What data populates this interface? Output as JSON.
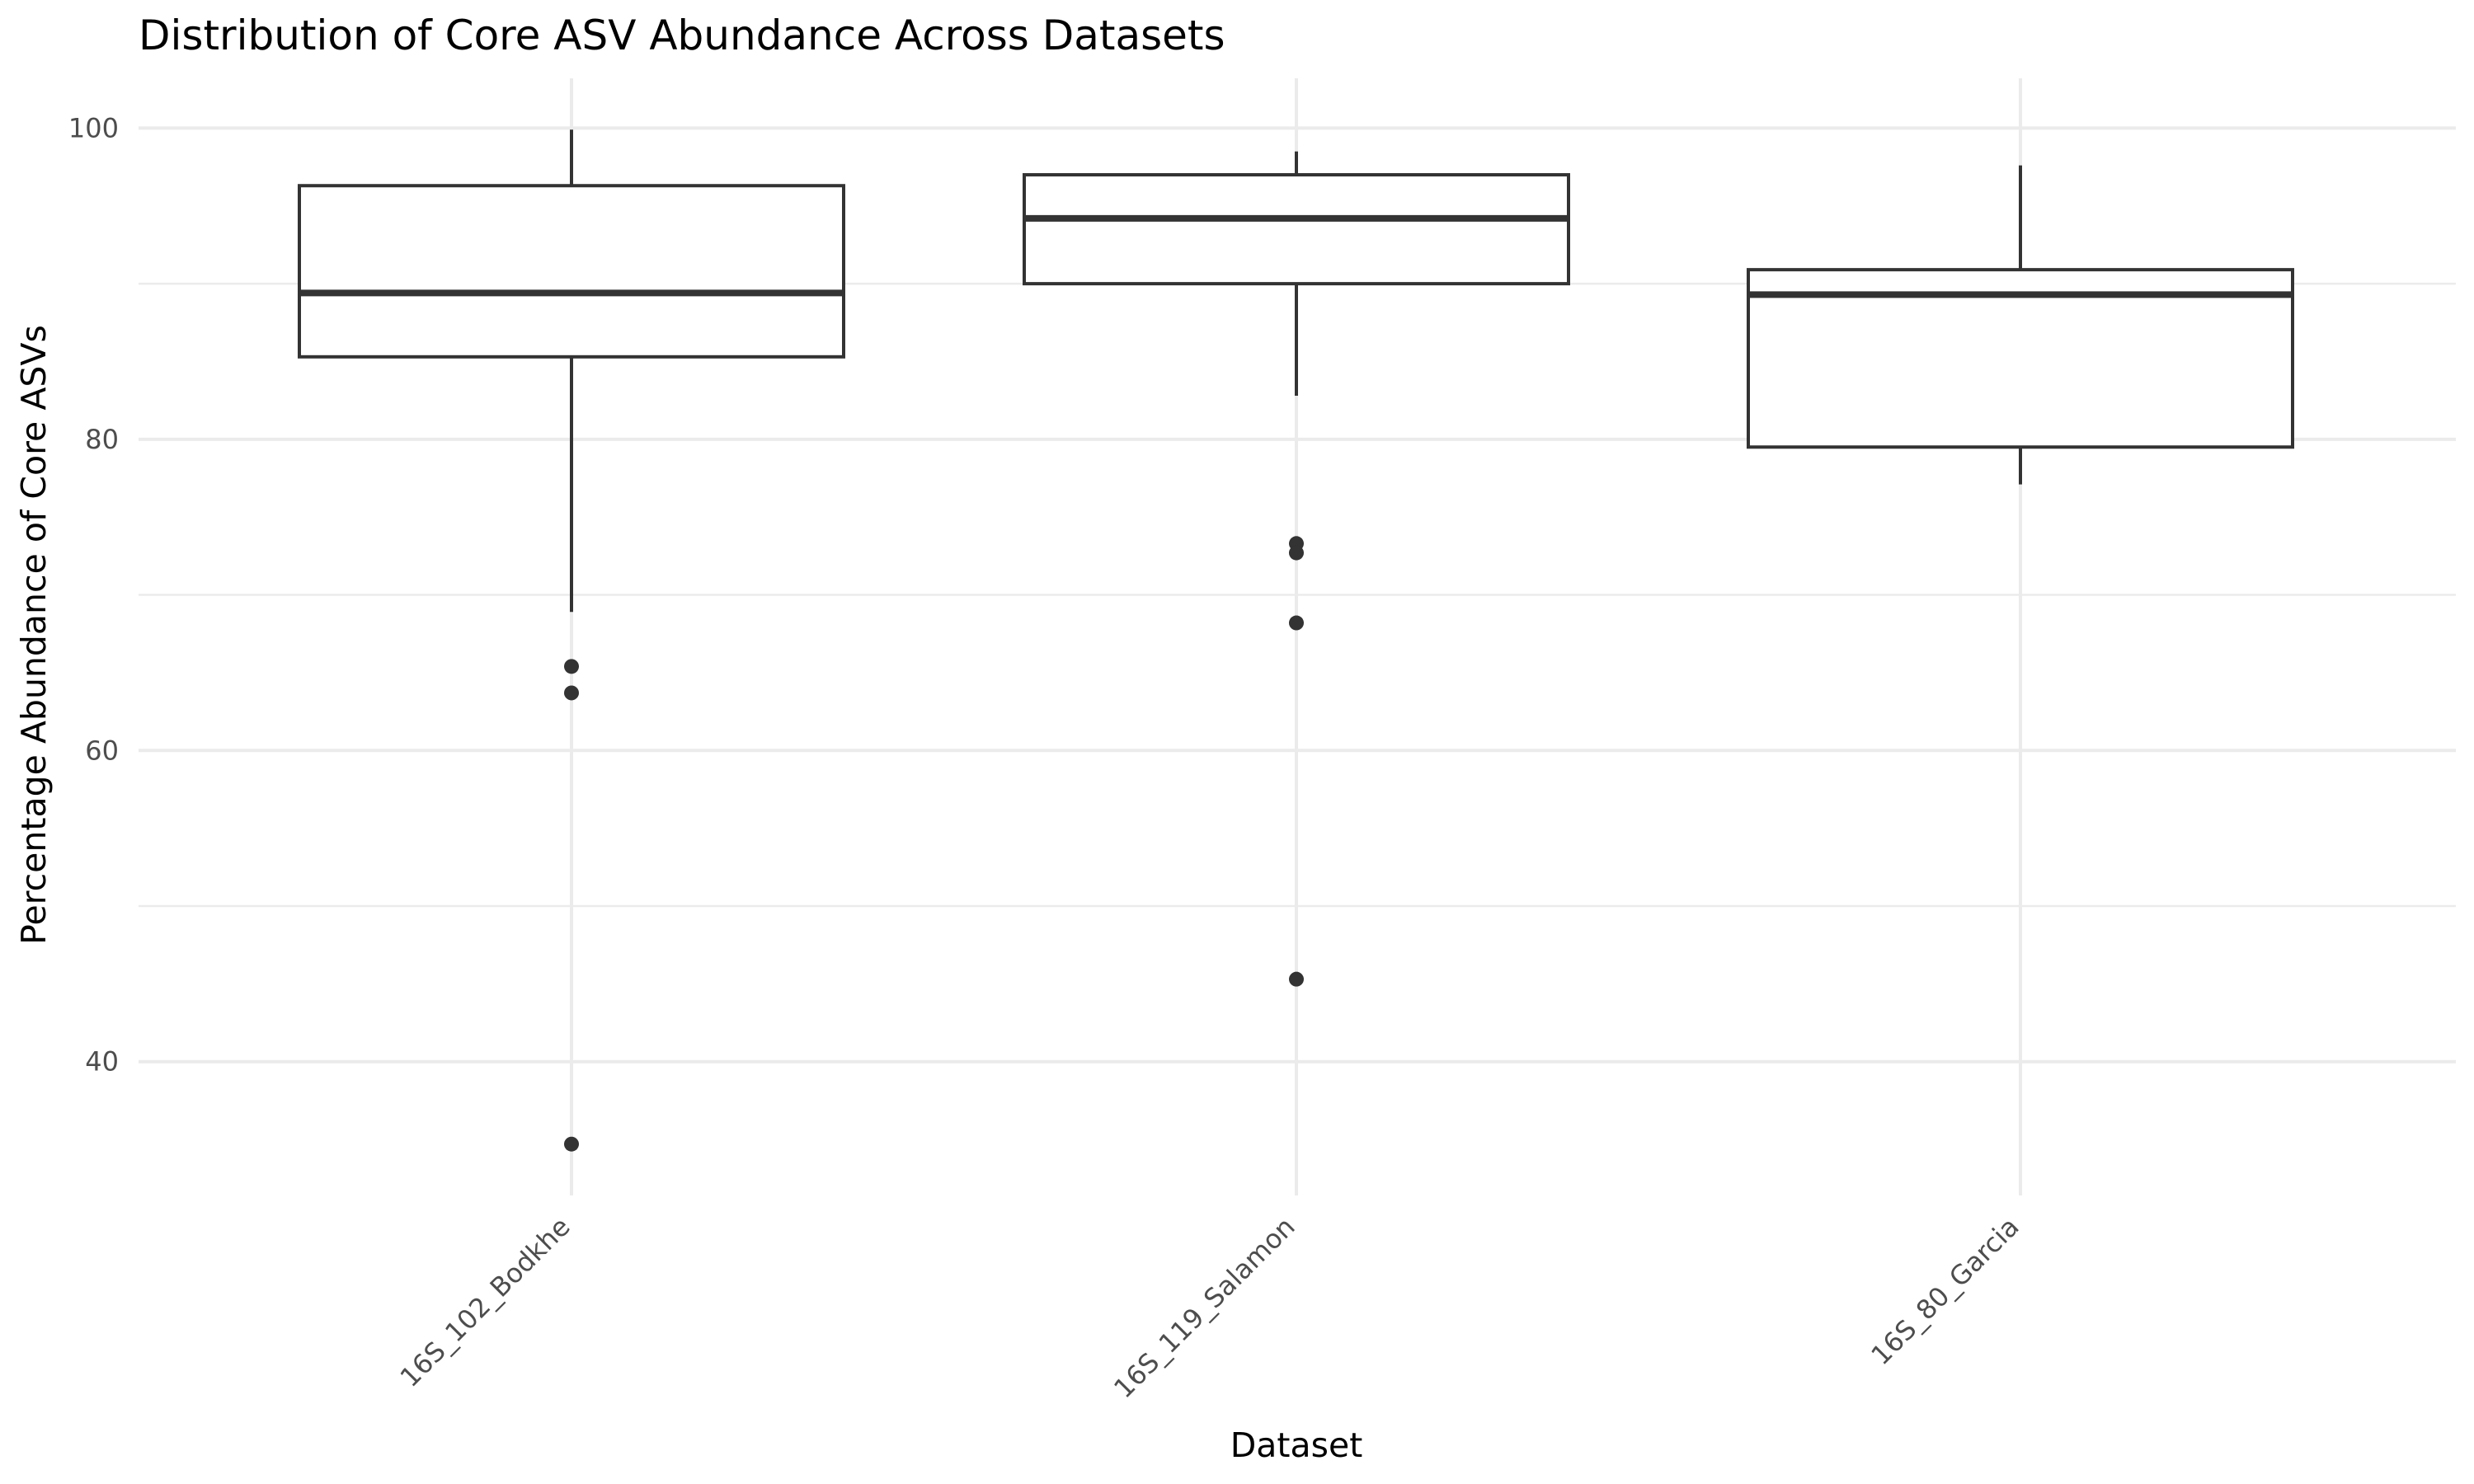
{
  "chart_data": {
    "type": "boxplot",
    "title": "Distribution of Core ASV Abundance Across Datasets",
    "xlabel": "Dataset",
    "ylabel": "Percentage Abundance of Core ASVs",
    "ylim": [
      31.4,
      103.2
    ],
    "yticks": [
      40,
      60,
      80,
      100
    ],
    "grid": true,
    "categories": [
      "16S_102_Bodkhe",
      "16S_119_Salamon",
      "16S_80_Garcia"
    ],
    "boxes": [
      {
        "category": "16S_102_Bodkhe",
        "whisker_low": 68.9,
        "q1": 85.3,
        "median": 89.4,
        "q3": 96.3,
        "whisker_high": 99.9,
        "outliers": [
          65.4,
          63.7,
          34.7
        ]
      },
      {
        "category": "16S_119_Salamon",
        "whisker_low": 82.8,
        "q1": 90.0,
        "median": 94.2,
        "q3": 97.0,
        "whisker_high": 98.5,
        "outliers": [
          73.3,
          72.7,
          68.2,
          45.3
        ]
      },
      {
        "category": "16S_80_Garcia",
        "whisker_low": 77.1,
        "q1": 79.5,
        "median": 89.3,
        "q3": 90.9,
        "whisker_high": 97.6,
        "outliers": []
      }
    ]
  }
}
